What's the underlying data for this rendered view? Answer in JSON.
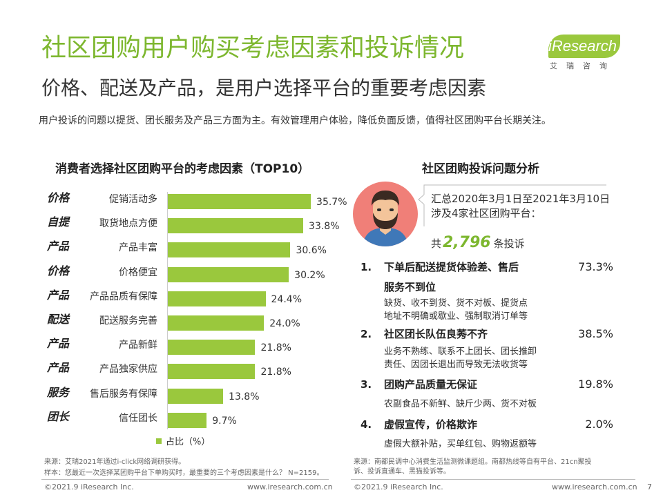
{
  "header": {
    "title": "社区团购用户购买考虑因素和投诉情况",
    "subtitle": "价格、配送及产品，是用户选择平台的重要考虑因素",
    "intro": "用户投诉的问题以提货、团长服务及产品三方面为主。有效管理用户体验，降低负面反馈，值得社区团购平台长期关注。"
  },
  "logo": {
    "word": "iResearch",
    "cn": "艾瑞咨询"
  },
  "chart_data": {
    "type": "bar",
    "title": "消费者选择社区团购平台的考虑因素（TOP10）",
    "categories": [
      "促销活动多",
      "取货地点方便",
      "产品丰富",
      "价格便宜",
      "产品品质有保障",
      "配送服务完善",
      "产品新鲜",
      "产品独家供应",
      "售后服务有保障",
      "信任团长"
    ],
    "groups": [
      "价格",
      "自提",
      "产品",
      "价格",
      "产品",
      "配送",
      "产品",
      "产品",
      "服务",
      "团长"
    ],
    "series": [
      {
        "name": "占比（%）",
        "values": [
          35.7,
          33.8,
          30.6,
          30.2,
          24.4,
          24.0,
          21.8,
          21.8,
          13.8,
          9.7
        ],
        "labels": [
          "35.7%",
          "33.8%",
          "30.6%",
          "30.2%",
          "24.4%",
          "24.0%",
          "21.8%",
          "21.8%",
          "13.8%",
          "9.7%"
        ]
      }
    ],
    "legend": "bottom",
    "xlim": [
      0,
      40
    ],
    "color": "#9ac83d"
  },
  "complaints": {
    "title": "社区团购投诉问题分析",
    "summary": "汇总2020年3月1日至2021年3月10日涉及4家社区团购平台：",
    "total_prefix": "共",
    "total_value": "2,796",
    "total_suffix": "条投诉",
    "issues": [
      {
        "num": "1.",
        "title": "下单后配送提货体验差、售后",
        "title2": "服务不到位",
        "pct": "73.3%",
        "detail": [
          "缺货、收不到货、货不对板、提货点",
          "地址不明确或歇业、强制取消订单等"
        ]
      },
      {
        "num": "2.",
        "title": "社区团长队伍良莠不齐",
        "pct": "38.5%",
        "detail": [
          "业务不熟练、联系不上团长、团长推卸",
          "责任、因团长退出而导致无法收货等"
        ]
      },
      {
        "num": "3.",
        "title": "团购产品质量无保证",
        "pct": "19.8%",
        "detail": [
          "农副食品不新鲜、缺斤少两、货不对板"
        ]
      },
      {
        "num": "4.",
        "title": "虚假宣传，价格欺诈",
        "pct": "2.0%",
        "detail": [
          "虚假大额补贴，买单红包、购物返额等"
        ]
      }
    ]
  },
  "footer": {
    "source_left_1": "来源：艾瑞2021年通过i-click网络调研获得。",
    "source_left_2": "样本：您最近一次选择某团购平台下单购买时，最重要的三个考虑因素是什么？ N=2159。",
    "source_right_1": "来源：南都民调中心消费生活监测微课题组。南都热线等自有平台、21cn聚投",
    "source_right_2": "诉、投诉直通车、黑猫投诉等。",
    "copyright_left": "©2021.9 iResearch Inc.",
    "url_left": "www.iresearch.com.cn",
    "copyright_right": "©2021.9 iResearch Inc.",
    "url_right": "www.iresearch.com.cn",
    "page": "7"
  }
}
